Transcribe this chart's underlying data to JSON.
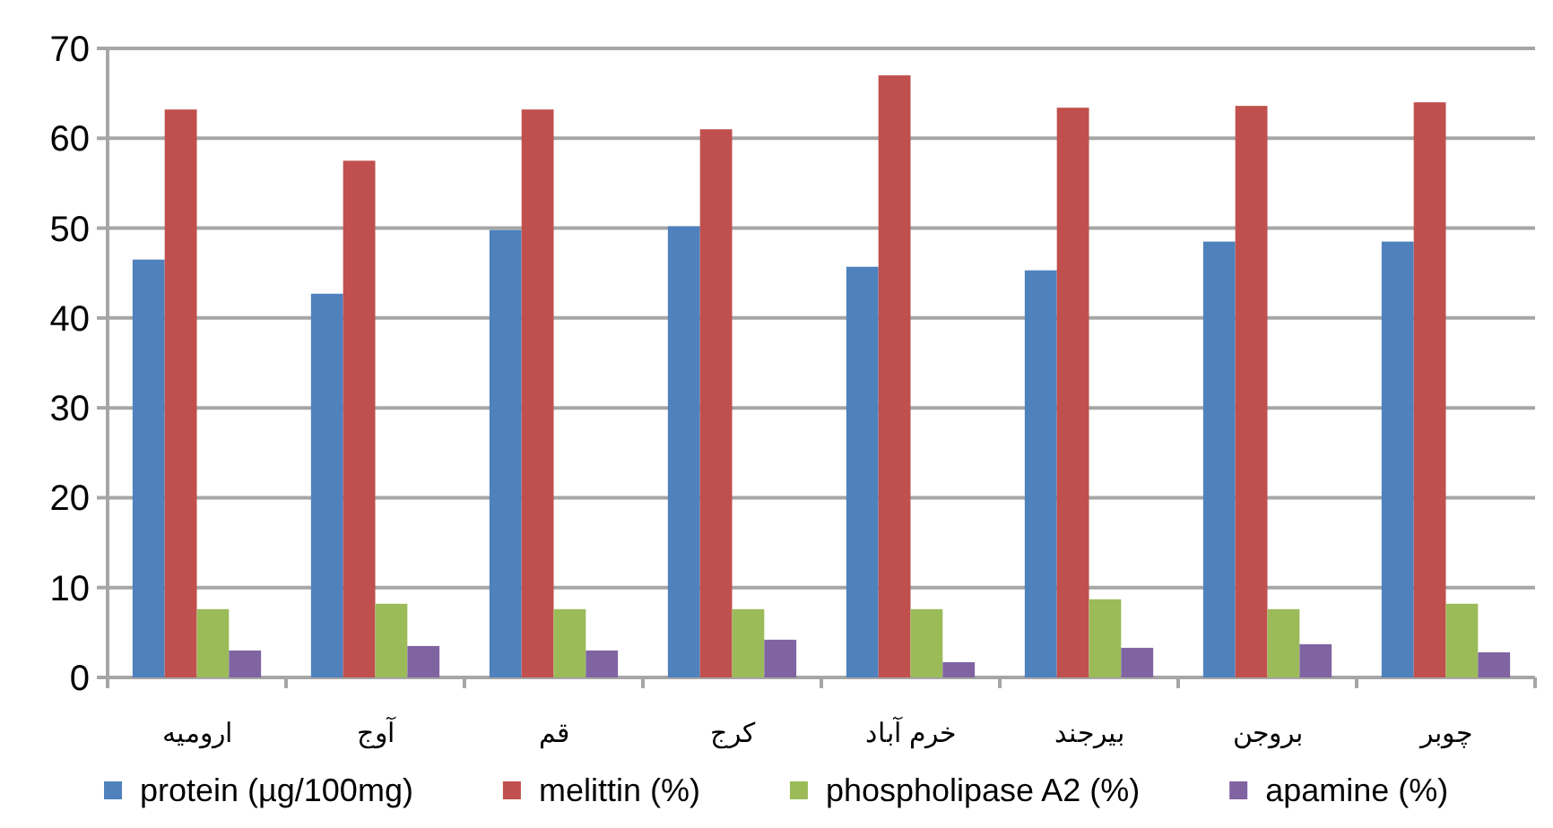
{
  "chart_data": {
    "type": "bar",
    "categories": [
      "ارومیه",
      "آوج",
      "قم",
      "کرج",
      "خرم آباد",
      "بیرجند",
      "بروجن",
      "چوبر"
    ],
    "series": [
      {
        "name": "protein (µg/100mg)",
        "color": "#4f81bd",
        "values": [
          46.5,
          42.7,
          49.8,
          50.2,
          45.7,
          45.3,
          48.5,
          48.5
        ]
      },
      {
        "name": "melittin (%)",
        "color": "#c0504d",
        "values": [
          63.2,
          57.5,
          63.2,
          61,
          67,
          63.4,
          63.6,
          64
        ]
      },
      {
        "name": "phospholipase A2 (%)",
        "color": "#9bbb59",
        "values": [
          7.6,
          8.2,
          7.6,
          7.6,
          7.6,
          8.7,
          7.6,
          8.2
        ]
      },
      {
        "name": "apamine (%)",
        "color": "#8064a2",
        "values": [
          3,
          3.5,
          3,
          4.2,
          1.7,
          3.3,
          3.7,
          2.8
        ]
      }
    ],
    "ylim": [
      0,
      70
    ],
    "yticks": [
      0,
      10,
      20,
      30,
      40,
      50,
      60,
      70
    ],
    "grid": "y",
    "legend": "bottom"
  }
}
